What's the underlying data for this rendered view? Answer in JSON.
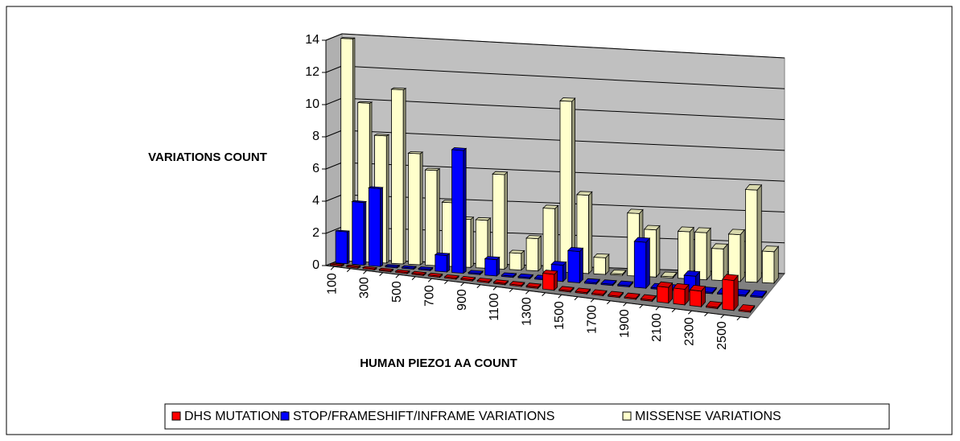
{
  "chart_data": {
    "type": "bar3d",
    "x_label": "HUMAN PIEZO1 AA COUNT",
    "y_label": "VARIATIONS COUNT",
    "categories": [
      "100",
      null,
      "300",
      null,
      "500",
      null,
      "700",
      null,
      "900",
      null,
      "1100",
      null,
      "1300",
      null,
      "1500",
      null,
      "1700",
      null,
      "1900",
      null,
      "2100",
      null,
      "2300",
      null,
      "2500",
      null
    ],
    "series": [
      {
        "name": "DHS MUTATIONS",
        "color": "#ff0000",
        "values": [
          0,
          0,
          0,
          0,
          0,
          0,
          0,
          0,
          0,
          0,
          0,
          0,
          0,
          1,
          0,
          0,
          0,
          0,
          0,
          0,
          1,
          1,
          1,
          0,
          2,
          0
        ]
      },
      {
        "name": "STOP/FRAMESHIFT/INFRAME VARIATIONS",
        "color": "#0000ff",
        "values": [
          2,
          4,
          5,
          0,
          0,
          0,
          1,
          8,
          0,
          1,
          0,
          0,
          0,
          1,
          2,
          0,
          0,
          0,
          3,
          0,
          0,
          1,
          0,
          0,
          0,
          0
        ]
      },
      {
        "name": "MISSENSE VARIATIONS",
        "color": "#ffffcc",
        "values": [
          14,
          10,
          8,
          11,
          7,
          6,
          4,
          3,
          3,
          6,
          1,
          2,
          4,
          11,
          5,
          1,
          0,
          4,
          3,
          0,
          3,
          3,
          2,
          3,
          6,
          2
        ]
      }
    ],
    "ylim": [
      0,
      14
    ],
    "yticks": [
      0,
      2,
      4,
      6,
      8,
      10,
      12,
      14
    ],
    "grid": true
  }
}
